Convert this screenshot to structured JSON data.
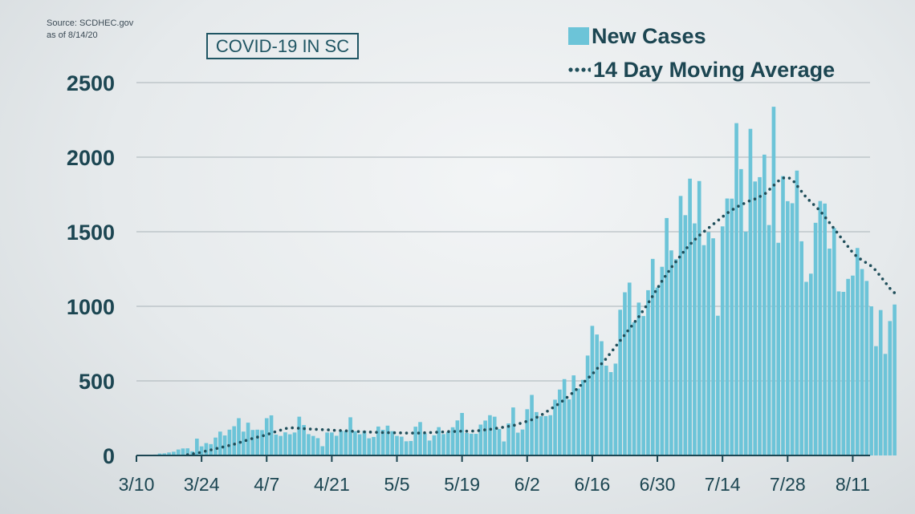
{
  "source": {
    "line1": "Source: SCDHEC.gov",
    "line2": "as of 8/14/20"
  },
  "title": "COVID-19 IN SC",
  "legend": {
    "bars": "New Cases",
    "line": "14 Day Moving Average"
  },
  "colors": {
    "bar": "#6cc4d8",
    "line": "#1f4e5a",
    "axis_text": "#1c4652",
    "grid": "#a9b3b8"
  },
  "chart_data": {
    "type": "bar",
    "x_start": "3/10",
    "x_tick_labels": [
      "3/10",
      "3/24",
      "4/7",
      "4/21",
      "5/5",
      "5/19",
      "6/2",
      "6/16",
      "6/30",
      "7/14",
      "7/28",
      "8/11"
    ],
    "y_ticks": [
      0,
      500,
      1000,
      1500,
      2000,
      2500
    ],
    "ylim": [
      0,
      2500
    ],
    "grid": true,
    "legend_position": "top-right",
    "series": [
      {
        "name": "New Cases",
        "type": "bar",
        "values": [
          0,
          0,
          0,
          3,
          6,
          13,
          14,
          20,
          25,
          40,
          47,
          48,
          28,
          113,
          61,
          83,
          76,
          120,
          160,
          134,
          173,
          196,
          250,
          160,
          220,
          171,
          173,
          170,
          250,
          269,
          140,
          131,
          155,
          142,
          154,
          260,
          204,
          143,
          131,
          116,
          62,
          154,
          154,
          132,
          166,
          165,
          256,
          163,
          142,
          165,
          115,
          124,
          194,
          172,
          200,
          163,
          131,
          126,
          95,
          97,
          193,
          224,
          148,
          100,
          135,
          190,
          143,
          158,
          189,
          235,
          285,
          151,
          146,
          145,
          207,
          234,
          270,
          260,
          177,
          94,
          215,
          322,
          153,
          174,
          310,
          406,
          291,
          263,
          264,
          270,
          374,
          442,
          512,
          376,
          537,
          449,
          507,
          670,
          869,
          811,
          766,
          602,
          559,
          616,
          977,
          1094,
          1159,
          893,
          1025,
          935,
          1108,
          1318,
          1126,
          1265,
          1592,
          1375,
          1316,
          1740,
          1611,
          1856,
          1556,
          1840,
          1410,
          1497,
          1456,
          937,
          1536,
          1723,
          1722,
          2228,
          1920,
          1501,
          2190,
          1837,
          1866,
          2017,
          1545,
          2338,
          1426,
          1873,
          1705,
          1691,
          1910,
          1436,
          1164,
          1219,
          1560,
          1706,
          1689,
          1387,
          1525,
          1100,
          1097,
          1184,
          1206,
          1391,
          1250,
          1170,
          1000,
          733,
          975,
          681,
          901,
          1012
        ]
      },
      {
        "name": "14 Day Moving Average",
        "type": "line",
        "values": [
          null,
          null,
          null,
          null,
          null,
          null,
          null,
          null,
          null,
          null,
          null,
          5,
          10,
          15,
          22,
          30,
          37,
          45,
          52,
          60,
          67,
          75,
          85,
          95,
          105,
          115,
          123,
          130,
          140,
          150,
          160,
          170,
          180,
          185,
          185,
          182,
          180,
          178,
          176,
          175,
          173,
          172,
          170,
          168,
          167,
          165,
          163,
          162,
          160,
          158,
          157,
          156,
          155,
          154,
          153,
          152,
          152,
          151,
          150,
          150,
          150,
          150,
          152,
          153,
          155,
          157,
          158,
          160,
          161,
          162,
          163,
          163,
          163,
          165,
          168,
          172,
          175,
          180,
          185,
          190,
          195,
          200,
          210,
          220,
          230,
          240,
          255,
          270,
          290,
          310,
          330,
          350,
          375,
          400,
          425,
          455,
          485,
          515,
          545,
          580,
          615,
          650,
          690,
          730,
          770,
          810,
          850,
          890,
          930,
          975,
          1020,
          1070,
          1120,
          1170,
          1215,
          1260,
          1300,
          1340,
          1380,
          1415,
          1445,
          1475,
          1500,
          1525,
          1550,
          1575,
          1600,
          1625,
          1645,
          1665,
          1680,
          1695,
          1710,
          1720,
          1735,
          1750,
          1780,
          1810,
          1840,
          1860,
          1865,
          1850,
          1810,
          1770,
          1730,
          1700,
          1670,
          1640,
          1600,
          1560,
          1520,
          1480,
          1440,
          1400,
          1360,
          1330,
          1310,
          1290,
          1270,
          1240,
          1200,
          1160,
          1120,
          1090
        ]
      }
    ]
  }
}
